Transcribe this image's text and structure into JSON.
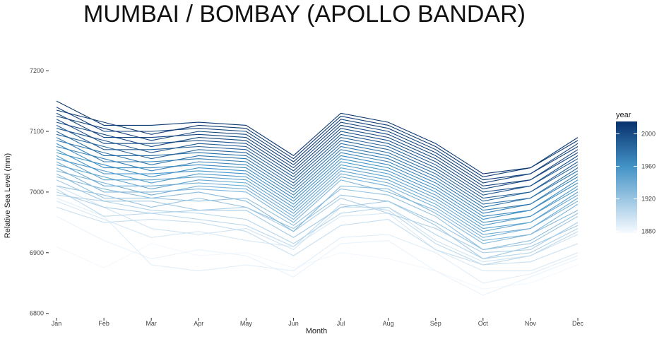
{
  "chart_data": {
    "type": "line",
    "title": "MUMBAI / BOMBAY (APOLLO BANDAR)",
    "xlabel": "Month",
    "ylabel": "Relative Sea Level (mm)",
    "categories": [
      "Jan",
      "Feb",
      "Mar",
      "Apr",
      "May",
      "Jun",
      "Jul",
      "Aug",
      "Sep",
      "Oct",
      "Nov",
      "Dec"
    ],
    "ylim": [
      6795,
      7270
    ],
    "yticks": [
      6800,
      6900,
      7000,
      7100,
      7200
    ],
    "grid": false,
    "legend": {
      "title": "year",
      "placement": "right",
      "type": "colorbar",
      "range": [
        1878,
        2015
      ],
      "ticks": [
        1880,
        1920,
        1960,
        2000
      ],
      "low_color": "#f7fbff",
      "high_color": "#08306b"
    },
    "series": [
      {
        "year": 1880,
        "values": [
          6910,
          6875,
          6915,
          6895,
          6900,
          6875,
          6900,
          6890,
          6870,
          6840,
          6850,
          6880
        ]
      },
      {
        "year": 1884,
        "values": [
          6960,
          6920,
          6890,
          6905,
          6895,
          6860,
          6915,
          6920,
          6870,
          6830,
          6860,
          6890
        ]
      },
      {
        "year": 1888,
        "values": [
          6990,
          6960,
          6880,
          6870,
          6880,
          6870,
          6925,
          6930,
          6900,
          6850,
          6865,
          6895
        ]
      },
      {
        "year": 1892,
        "values": [
          6985,
          6955,
          6925,
          6935,
          6920,
          6910,
          6960,
          6965,
          6905,
          6870,
          6870,
          6900
        ]
      },
      {
        "year": 1896,
        "values": [
          7010,
          6975,
          6940,
          6930,
          6940,
          6905,
          6975,
          6975,
          6920,
          6885,
          6895,
          6930
        ]
      },
      {
        "year": 1900,
        "values": [
          6975,
          6950,
          6955,
          6950,
          6935,
          6895,
          6945,
          6955,
          6905,
          6880,
          6885,
          6915
        ]
      },
      {
        "year": 1904,
        "values": [
          7005,
          6960,
          6965,
          6955,
          6945,
          6910,
          6980,
          6970,
          6915,
          6880,
          6895,
          6935
        ]
      },
      {
        "year": 1908,
        "values": [
          6995,
          6985,
          6970,
          6965,
          6955,
          6915,
          6965,
          6975,
          6930,
          6890,
          6900,
          6940
        ]
      },
      {
        "year": 1912,
        "values": [
          7000,
          6975,
          6965,
          6970,
          6975,
          6935,
          6990,
          6965,
          6940,
          6900,
          6905,
          6950
        ]
      },
      {
        "year": 1916,
        "values": [
          7020,
          6985,
          6985,
          6970,
          6970,
          6925,
          6975,
          6985,
          6945,
          6890,
          6910,
          6945
        ]
      },
      {
        "year": 1920,
        "values": [
          7010,
          6995,
          6975,
          6990,
          6975,
          6940,
          6995,
          6985,
          6950,
          6905,
          6915,
          6960
        ]
      },
      {
        "year": 1924,
        "values": [
          7030,
          6990,
          6990,
          6985,
          6990,
          6945,
          7005,
          6995,
          6960,
          6905,
          6920,
          6965
        ]
      },
      {
        "year": 1928,
        "values": [
          7025,
          7005,
          6990,
          7000,
          6985,
          6935,
          7010,
          7005,
          6965,
          6915,
          6930,
          6970
        ]
      },
      {
        "year": 1932,
        "values": [
          7040,
          7000,
          7000,
          7005,
          7000,
          6950,
          7020,
          7000,
          6970,
          6920,
          6930,
          6980
        ]
      },
      {
        "year": 1936,
        "values": [
          7035,
          7015,
          6995,
          7010,
          7005,
          6955,
          7025,
          7010,
          6975,
          6925,
          6940,
          6985
        ]
      },
      {
        "year": 1940,
        "values": [
          7050,
          7010,
          7010,
          7015,
          7010,
          6960,
          7030,
          7015,
          6980,
          6930,
          6940,
          6990
        ]
      },
      {
        "year": 1944,
        "values": [
          7045,
          7025,
          7005,
          7020,
          7015,
          6965,
          7035,
          7020,
          6985,
          6935,
          6950,
          6995
        ]
      },
      {
        "year": 1948,
        "values": [
          7060,
          7020,
          7020,
          7025,
          7020,
          6970,
          7040,
          7025,
          6990,
          6940,
          6950,
          7000
        ]
      },
      {
        "year": 1952,
        "values": [
          7055,
          7035,
          7015,
          7030,
          7025,
          6975,
          7045,
          7030,
          6995,
          6945,
          6960,
          7005
        ]
      },
      {
        "year": 1956,
        "values": [
          7070,
          7030,
          7030,
          7035,
          7030,
          6980,
          7050,
          7035,
          7000,
          6950,
          6960,
          7010
        ]
      },
      {
        "year": 1960,
        "values": [
          7065,
          7045,
          7025,
          7040,
          7035,
          6985,
          7055,
          7040,
          7005,
          6955,
          6970,
          7015
        ]
      },
      {
        "year": 1964,
        "values": [
          7080,
          7040,
          7040,
          7045,
          7040,
          6990,
          7060,
          7045,
          7010,
          6960,
          6970,
          7020
        ]
      },
      {
        "year": 1968,
        "values": [
          7075,
          7055,
          7035,
          7050,
          7045,
          6995,
          7065,
          7050,
          7015,
          6965,
          6980,
          7025
        ]
      },
      {
        "year": 1972,
        "values": [
          7090,
          7050,
          7050,
          7055,
          7050,
          7000,
          7070,
          7055,
          7020,
          6970,
          6980,
          7030
        ]
      },
      {
        "year": 1976,
        "values": [
          7085,
          7065,
          7045,
          7060,
          7055,
          7005,
          7075,
          7060,
          7025,
          6975,
          6990,
          7035
        ]
      },
      {
        "year": 1980,
        "values": [
          7100,
          7060,
          7060,
          7065,
          7060,
          7010,
          7080,
          7065,
          7030,
          6980,
          6990,
          7040
        ]
      },
      {
        "year": 1984,
        "values": [
          7095,
          7075,
          7055,
          7070,
          7065,
          7015,
          7085,
          7070,
          7035,
          6985,
          7000,
          7045
        ]
      },
      {
        "year": 1988,
        "values": [
          7110,
          7070,
          7070,
          7075,
          7070,
          7020,
          7090,
          7075,
          7040,
          6990,
          7000,
          7050
        ]
      },
      {
        "year": 1992,
        "values": [
          7105,
          7085,
          7065,
          7080,
          7075,
          7025,
          7095,
          7080,
          7045,
          6995,
          7010,
          7055
        ]
      },
      {
        "year": 1996,
        "values": [
          7120,
          7080,
          7080,
          7085,
          7080,
          7030,
          7100,
          7085,
          7050,
          7000,
          7010,
          7060
        ]
      },
      {
        "year": 2000,
        "values": [
          7115,
          7095,
          7075,
          7090,
          7085,
          7035,
          7105,
          7090,
          7055,
          7005,
          7020,
          7065
        ]
      },
      {
        "year": 2002,
        "values": [
          7130,
          7090,
          7090,
          7095,
          7090,
          7040,
          7110,
          7095,
          7060,
          7010,
          7020,
          7070
        ]
      },
      {
        "year": 2004,
        "values": [
          7125,
          7105,
          7085,
          7100,
          7095,
          7045,
          7115,
          7100,
          7065,
          7015,
          7030,
          7075
        ]
      },
      {
        "year": 2006,
        "values": [
          7140,
          7100,
          7100,
          7105,
          7100,
          7050,
          7120,
          7105,
          7070,
          7020,
          7030,
          7080
        ]
      },
      {
        "year": 2008,
        "values": [
          7135,
          7115,
          7095,
          7110,
          7105,
          7055,
          7125,
          7110,
          7075,
          7025,
          7040,
          7085
        ]
      },
      {
        "year": 2010,
        "values": [
          7150,
          7110,
          7110,
          7115,
          7110,
          7060,
          7130,
          7115,
          7080,
          7030,
          7040,
          7090
        ]
      }
    ]
  }
}
